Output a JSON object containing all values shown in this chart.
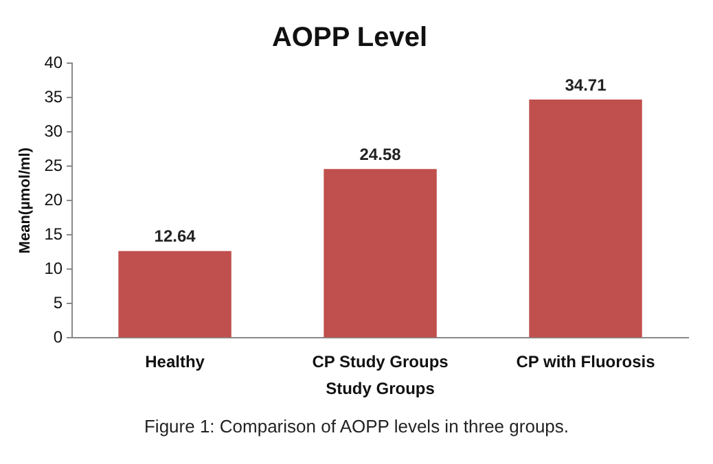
{
  "chart_data": {
    "type": "bar",
    "title": "AOPP Level",
    "xlabel": "Study Groups",
    "ylabel": "Mean(µmol/ml)",
    "categories": [
      "Healthy",
      "CP Study Groups",
      "CP with Fluorosis"
    ],
    "values": [
      12.64,
      24.58,
      34.71
    ],
    "color": "#c0504d",
    "ylim": [
      0,
      40
    ],
    "yticks": [
      0,
      5,
      10,
      15,
      20,
      25,
      30,
      35,
      40
    ],
    "grid": false,
    "legend": false,
    "data_labels": true,
    "annotations": [
      "Figure 1: Comparison of AOPP levels in three groups."
    ]
  }
}
